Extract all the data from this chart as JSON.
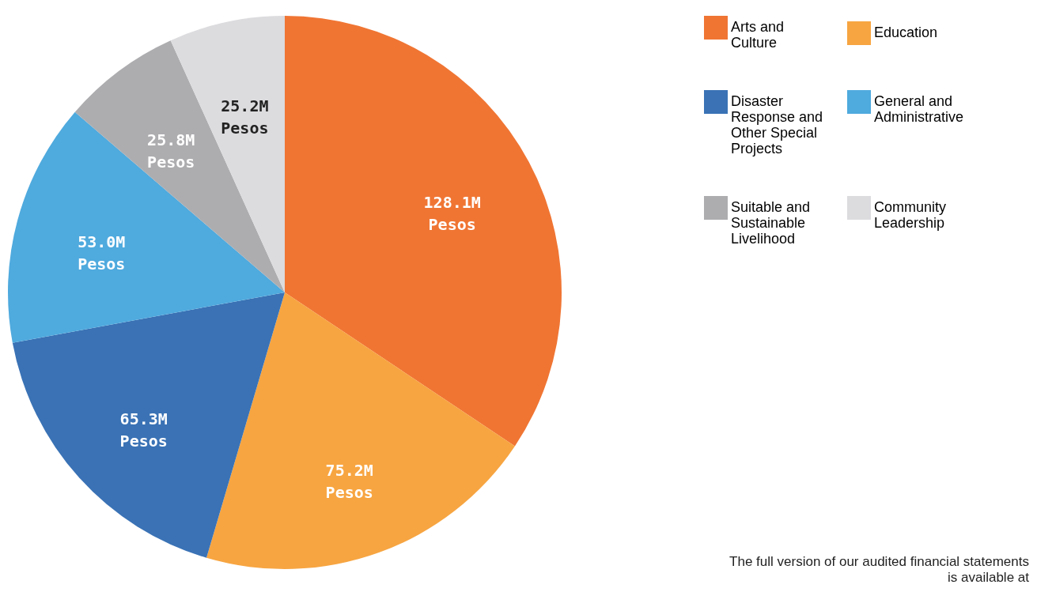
{
  "chart_data": {
    "type": "pie",
    "categories": [
      "Arts and Culture",
      "Education",
      "Disaster Response and Other Special Projects",
      "General and Administrative",
      "Suitable and Sustainable Livelihood",
      "Community Leadership"
    ],
    "values": [
      128.1,
      75.2,
      65.3,
      53.0,
      25.8,
      25.2
    ],
    "value_labels": [
      "128.1M Pesos",
      "75.2M Pesos",
      "65.3M Pesos",
      "53.0M Pesos",
      "25.8M Pesos",
      "25.2M Pesos"
    ],
    "colors": [
      "#f07533",
      "#f7a541",
      "#3a72b5",
      "#4faade",
      "#adadb0",
      "#dcdcdf"
    ],
    "legend": "right",
    "annotations": [
      "The full version of our audited financial statements is available at"
    ]
  }
}
